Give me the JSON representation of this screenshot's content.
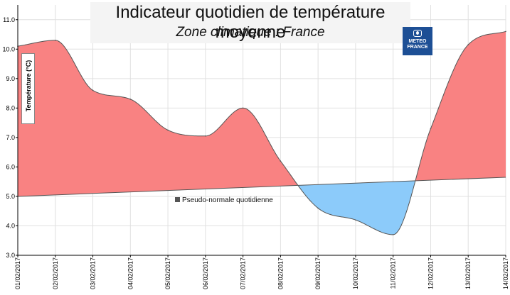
{
  "chart_data": {
    "type": "area",
    "title": "Indicateur quotidien de température moyenne",
    "subtitle": "Zone climatique : France",
    "ylabel": "Température (°C)",
    "xlabel": "",
    "ylim": [
      3.0,
      11.5
    ],
    "xlim": [
      "01/02/2017",
      "14/02/2017"
    ],
    "yticks": [
      3.0,
      4.0,
      5.0,
      6.0,
      7.0,
      8.0,
      9.0,
      10.0,
      11.0
    ],
    "ytick_labels": [
      "3.0",
      "4.0",
      "5.0",
      "6.0",
      "7.0",
      "8.0",
      "9.0",
      "10.0",
      "11.0"
    ],
    "categories": [
      "01/02/2017",
      "02/02/2017",
      "03/02/2017",
      "04/02/2017",
      "05/02/2017",
      "06/02/2017",
      "07/02/2017",
      "08/02/2017",
      "09/02/2017",
      "10/02/2017",
      "11/02/2017",
      "12/02/2017",
      "13/02/2017",
      "14/02/2017"
    ],
    "grid": true,
    "series": [
      {
        "name": "",
        "role": "indicator",
        "x": [
          "01/02/2017",
          "02/02/2017",
          "03/02/2017",
          "04/02/2017",
          "05/02/2017",
          "06/02/2017",
          "07/02/2017",
          "08/02/2017",
          "09/02/2017",
          "10/02/2017",
          "11/02/2017",
          "12/02/2017",
          "13/02/2017",
          "14/02/2017"
        ],
        "values": [
          10.1,
          10.3,
          8.6,
          8.3,
          7.25,
          7.05,
          8.0,
          6.2,
          4.6,
          4.2,
          3.7,
          7.3,
          10.15,
          10.6
        ]
      },
      {
        "name": "Pseudo-normale quotidienne",
        "role": "normal",
        "x": [
          "01/02/2017",
          "14/02/2017"
        ],
        "values": [
          5.0,
          5.65
        ]
      }
    ],
    "fill_colors": {
      "above": "#f98282",
      "below": "#8ccbfa"
    },
    "legend": {
      "label": "Pseudo-normale quotidienne",
      "placement": "inside-center"
    }
  },
  "logo": {
    "line1": "METEO",
    "line2": "FRANCE"
  }
}
